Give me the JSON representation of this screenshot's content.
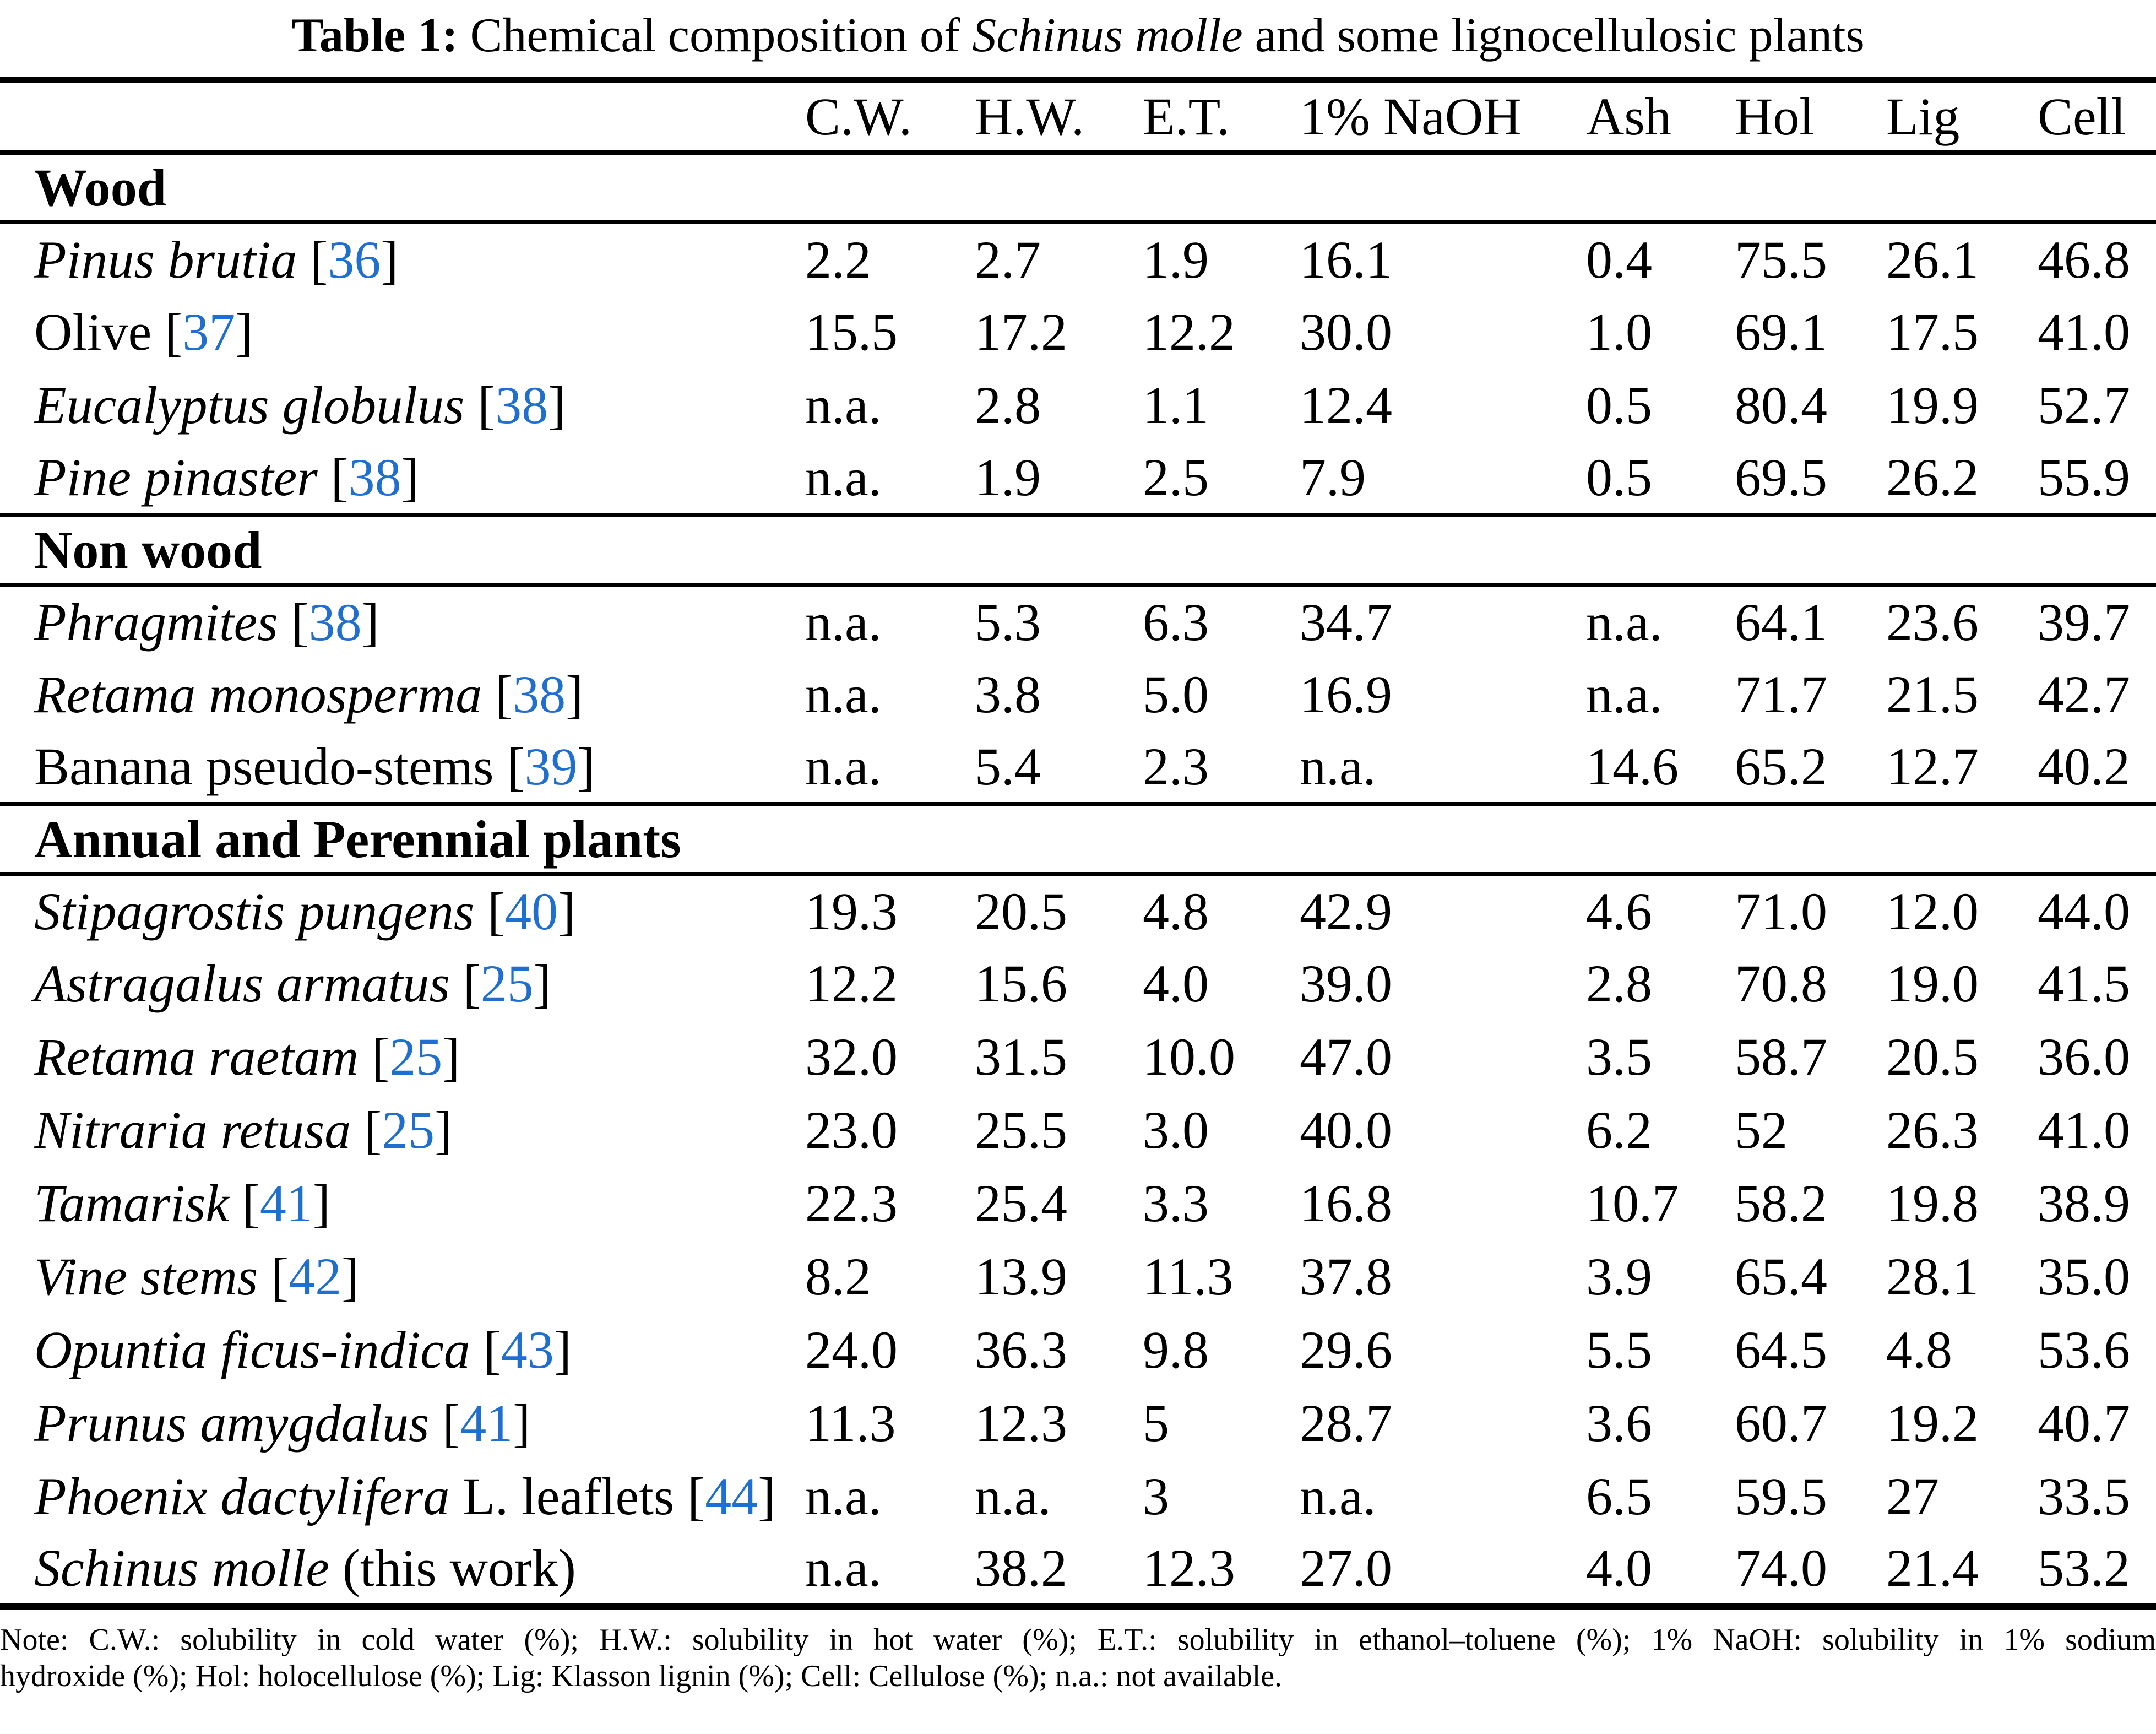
{
  "title": {
    "prefix": "Table 1:",
    "body": " Chemical composition of ",
    "species": "Schinus molle",
    "suffix": " and some lignocellulosic plants"
  },
  "colors": {
    "citation_blue": "#1f6fd0",
    "text_black": "#000000"
  },
  "table": {
    "columns": [
      "C.W.",
      "H.W.",
      "E.T.",
      "1% NaOH",
      "Ash",
      "Hol",
      "Lig",
      "Cell"
    ],
    "sections": [
      {
        "header": "Wood",
        "rows": [
          {
            "name_italic": "Pinus brutia",
            "name_rest": "",
            "ref": "36",
            "values": [
              "2.2",
              "2.7",
              "1.9",
              "16.1",
              "0.4",
              "75.5",
              "26.1",
              "46.8"
            ]
          },
          {
            "name_italic": "",
            "name_rest": "Olive",
            "ref": "37",
            "values": [
              "15.5",
              "17.2",
              "12.2",
              "30.0",
              "1.0",
              "69.1",
              "17.5",
              "41.0"
            ]
          },
          {
            "name_italic": "Eucalyptus globulus",
            "name_rest": "",
            "ref": "38",
            "values": [
              "n.a.",
              "2.8",
              "1.1",
              "12.4",
              "0.5",
              "80.4",
              "19.9",
              "52.7"
            ]
          },
          {
            "name_italic": "Pine pinaster",
            "name_rest": "",
            "ref": "38",
            "values": [
              "n.a.",
              "1.9",
              "2.5",
              "7.9",
              "0.5",
              "69.5",
              "26.2",
              "55.9"
            ]
          }
        ]
      },
      {
        "header": "Non wood",
        "rows": [
          {
            "name_italic": "Phragmites",
            "name_rest": "",
            "ref": "38",
            "values": [
              "n.a.",
              "5.3",
              "6.3",
              "34.7",
              "n.a.",
              "64.1",
              "23.6",
              "39.7"
            ]
          },
          {
            "name_italic": "Retama monosperma",
            "name_rest": "",
            "ref": "38",
            "values": [
              "n.a.",
              "3.8",
              "5.0",
              "16.9",
              "n.a.",
              "71.7",
              "21.5",
              "42.7"
            ]
          },
          {
            "name_italic": "",
            "name_rest": "Banana pseudo-stems",
            "ref": "39",
            "values": [
              "n.a.",
              "5.4",
              "2.3",
              "n.a.",
              "14.6",
              "65.2",
              "12.7",
              "40.2"
            ]
          }
        ]
      },
      {
        "header": "Annual and Perennial plants",
        "rows": [
          {
            "name_italic": "Stipagrostis pungens",
            "name_rest": "",
            "ref": "40",
            "values": [
              "19.3",
              "20.5",
              "4.8",
              "42.9",
              "4.6",
              "71.0",
              "12.0",
              "44.0"
            ]
          },
          {
            "name_italic": "Astragalus armatus",
            "name_rest": "",
            "ref": "25",
            "values": [
              "12.2",
              "15.6",
              "4.0",
              "39.0",
              "2.8",
              "70.8",
              "19.0",
              "41.5"
            ]
          },
          {
            "name_italic": "Retama raetam",
            "name_rest": "",
            "ref": "25",
            "values": [
              "32.0",
              "31.5",
              "10.0",
              "47.0",
              "3.5",
              "58.7",
              "20.5",
              "36.0"
            ]
          },
          {
            "name_italic": "Nitraria retusa",
            "name_rest": "",
            "ref": "25",
            "values": [
              "23.0",
              "25.5",
              "3.0",
              "40.0",
              "6.2",
              "52",
              "26.3",
              "41.0"
            ]
          },
          {
            "name_italic": "Tamarisk",
            "name_rest": "",
            "ref": "41",
            "values": [
              "22.3",
              "25.4",
              "3.3",
              "16.8",
              "10.7",
              "58.2",
              "19.8",
              "38.9"
            ]
          },
          {
            "name_italic": "Vine stems",
            "name_rest": "",
            "ref": "42",
            "values": [
              "8.2",
              "13.9",
              "11.3",
              "37.8",
              "3.9",
              "65.4",
              "28.1",
              "35.0"
            ]
          },
          {
            "name_italic": "Opuntia ficus-indica",
            "name_rest": "",
            "ref": "43",
            "values": [
              "24.0",
              "36.3",
              "9.8",
              "29.6",
              "5.5",
              "64.5",
              "4.8",
              "53.6"
            ]
          },
          {
            "name_italic": "Prunus amygdalus",
            "name_rest": "",
            "ref": "41",
            "values": [
              "11.3",
              "12.3",
              "5",
              "28.7",
              "3.6",
              "60.7",
              "19.2",
              "40.7"
            ]
          },
          {
            "name_italic": "Phoenix dactylifera",
            "name_rest": " L. leaflets",
            "ref": "44",
            "values": [
              "n.a.",
              "n.a.",
              "3",
              "n.a.",
              "6.5",
              "59.5",
              "27",
              "33.5"
            ]
          },
          {
            "name_italic": "Schinus molle",
            "name_rest": " (this work)",
            "ref": null,
            "values": [
              "n.a.",
              "38.2",
              "12.3",
              "27.0",
              "4.0",
              "74.0",
              "21.4",
              "53.2"
            ]
          }
        ]
      }
    ]
  },
  "note_lines": [
    "Note: C.W.: solubility in cold water (%); H.W.: solubility in hot water (%); E.T.: solubility in ethanol–toluene (%); 1% NaOH: solubility in 1% sodium",
    "hydroxide (%); Hol: holocellulose (%); Lig: Klasson lignin (%); Cell: Cellulose (%); n.a.: not available."
  ]
}
